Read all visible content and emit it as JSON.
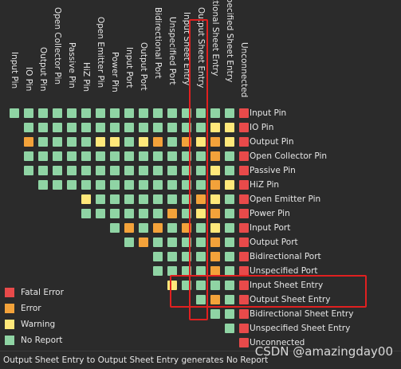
{
  "pins": [
    "Input Pin",
    "IO Pin",
    "Output Pin",
    "Open Collector Pin",
    "Passive Pin",
    "HiZ Pin",
    "Open Emitter Pin",
    "Power Pin",
    "Input Port",
    "Output Port",
    "Bidirectional Port",
    "Unspecified Port",
    "Input Sheet Entry",
    "Output Sheet Entry",
    "Bidirectional Sheet Entry",
    "Unspecified Sheet Entry",
    "Unconnected"
  ],
  "colors": {
    "G": "#8fd4a4",
    "Y": "#ffe87a",
    "O": "#f3a23a",
    "R": "#e84a4a",
    "highlight": "#e02020"
  },
  "matrix_rows": [
    "GGGGGGGGGGGGGGGGR",
    "GGGGGGGGGGGGGYYR",
    "OGGGGYYGYOGOYOYR",
    "GGGGGGGGGGGGGOGR",
    "GGGGGGGGGGGGGYGR",
    "GGGGGGGGGGGGOYR",
    "YGGGGGGGOYGR",
    "GGGGGGOGYOGR",
    "GOGOGOGYGR",
    "GOGGGGOGR",
    "GGGGOGR",
    "GGGGOGR",
    "YGGGGR",
    "GOGR",
    "GGR",
    "GR",
    "R"
  ],
  "legend": [
    {
      "label": "Fatal Error",
      "color": "#e84a4a"
    },
    {
      "label": "Error",
      "color": "#f3a23a"
    },
    {
      "label": "Warning",
      "color": "#ffe87a"
    },
    {
      "label": "No Report",
      "color": "#8fd4a4"
    }
  ],
  "status": "Output Sheet Entry to Output Sheet Entry generates No Report",
  "watermark": "CSDN @amazingday00"
}
